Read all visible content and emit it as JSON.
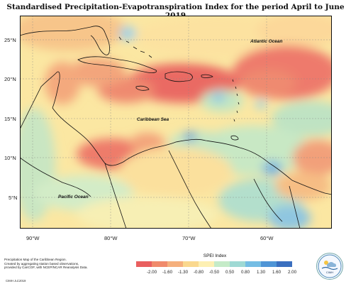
{
  "title": "Standardised Precipitation-Evapotranspiration Index for the period April to June 2019",
  "map": {
    "lat_labels": [
      "25°N",
      "20°N",
      "15°N",
      "10°N",
      "5°N"
    ],
    "lon_labels": [
      "90°W",
      "80°W",
      "70°W",
      "60°W"
    ],
    "region_labels": {
      "atlantic": "Atlantic Ocean",
      "caribbean": "Caribbean Sea",
      "pacific": "Pacific Ocean"
    }
  },
  "legend": {
    "title": "SPEI Index",
    "values": [
      "-2.00",
      "-1.60",
      "-1.30",
      "-0.80",
      "-0.50",
      "0.50",
      "0.80",
      "1.30",
      "1.60",
      "2.00"
    ],
    "colors": [
      "#e95f5f",
      "#f08a6b",
      "#f5b07d",
      "#fad88e",
      "#fdf0b3",
      "#c5ebc8",
      "#9fd9d4",
      "#74bde4",
      "#4f95d6",
      "#3a6fbf"
    ]
  },
  "credits": {
    "lines": [
      "Precipitation Map of the Caribbean Region.",
      "Created by aggregating station based observations,",
      "provided by CariCOF, with NCEP/NCAR Reanalysis Data."
    ],
    "footer": "CIMH  Jul.2019"
  },
  "logo": {
    "text": "CIMH"
  }
}
